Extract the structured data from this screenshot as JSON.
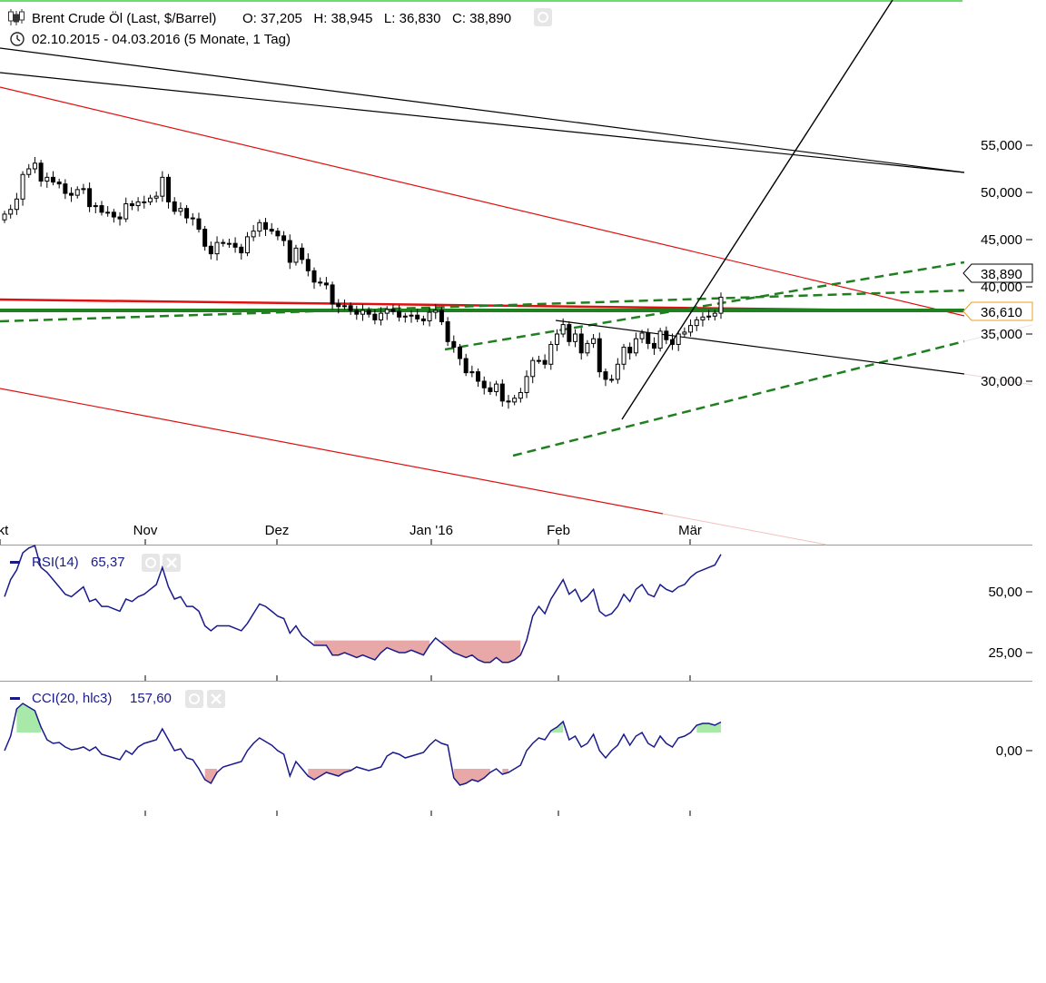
{
  "header": {
    "title": "Brent Crude Öl (Last, $/Barrel)",
    "ohlc": "O: 37,205   H: 38,945   L: 36,830   C: 38,890",
    "range": "02.10.2015 - 04.03.2016 (5 Monate, 1 Tag)"
  },
  "price_labels": {
    "last": "38,890",
    "marker": "36,610"
  },
  "chart_data": [
    {
      "type": "candlestick",
      "title": "Brent Crude Öl (Last, $/Barrel)",
      "ylim": [
        26000,
        58000
      ],
      "y_ticks": [
        "55,000",
        "50,000",
        "45,000",
        "40,000",
        "35,000",
        "30,000"
      ],
      "y_tick_values": [
        55000,
        50000,
        45000,
        40000,
        35000,
        30000
      ],
      "x_ticks": [
        "Okt",
        "Nov",
        "Dez",
        "Jan '16",
        "Feb",
        "Mär"
      ],
      "x_tick_dates": [
        "2015-10-01",
        "2015-11-02",
        "2015-12-01",
        "2016-01-04",
        "2016-02-01",
        "2016-03-01"
      ],
      "x_range": [
        "2015-10-01",
        "2016-04-30"
      ],
      "closes": [
        47.7,
        48.2,
        49.3,
        51.9,
        52.5,
        53.1,
        51.2,
        51.6,
        51.1,
        50.9,
        49.9,
        49.7,
        50.3,
        50.4,
        48.5,
        48.6,
        47.9,
        47.9,
        47.4,
        47.2,
        48.8,
        48.6,
        49.0,
        49.0,
        49.4,
        49.6,
        51.6,
        49.0,
        48.0,
        48.3,
        47.3,
        47.2,
        46.1,
        44.3,
        43.5,
        44.7,
        44.6,
        44.6,
        44.2,
        43.6,
        45.3,
        45.9,
        46.8,
        46.1,
        45.9,
        45.4,
        44.9,
        42.6,
        44.1,
        42.9,
        41.7,
        40.5,
        40.4,
        40.2,
        38.2,
        37.9,
        38.0,
        37.5,
        37.1,
        37.5,
        37.1,
        36.5,
        37.2,
        37.6,
        37.4,
        36.8,
        36.9,
        37.0,
        36.6,
        36.4,
        37.3,
        37.5,
        36.3,
        34.2,
        33.6,
        32.4,
        30.9,
        31.0,
        30.0,
        29.3,
        28.9,
        29.7,
        27.9,
        27.8,
        28.2,
        28.8,
        30.5,
        32.2,
        32.2,
        31.8,
        33.9,
        35.0,
        36.0,
        34.2,
        35.0,
        33.0,
        34.0,
        34.5,
        31.0,
        30.2,
        30.2,
        31.8,
        33.6,
        33.0,
        34.5,
        35.1,
        34.0,
        33.5,
        35.3,
        34.4,
        33.9,
        35.0,
        35.2,
        35.9,
        36.5,
        36.8,
        36.9,
        37.2,
        38.9
      ]
    },
    {
      "type": "line",
      "title": "RSI(14)",
      "last_value": "65,37",
      "ylim": [
        10,
        75
      ],
      "y_ticks": [
        "50,00",
        "25,00"
      ],
      "y_tick_values": [
        50,
        25
      ],
      "threshold": 30,
      "values": [
        48,
        55,
        59,
        66,
        68,
        69,
        60,
        58,
        55,
        52,
        49,
        48,
        50,
        52,
        46,
        47,
        44,
        44,
        43,
        42,
        47,
        46,
        48,
        49,
        51,
        53,
        60,
        52,
        47,
        48,
        44,
        44,
        42,
        36,
        34,
        36,
        36,
        36,
        35,
        34,
        37,
        41,
        45,
        44,
        42,
        40,
        39,
        33,
        36,
        32,
        30,
        28,
        28,
        28,
        24,
        24,
        25,
        24,
        23,
        24,
        23,
        22,
        25,
        27,
        26,
        25,
        25,
        26,
        25,
        24,
        28,
        31,
        29,
        27,
        25,
        24,
        23,
        24,
        22,
        21,
        21,
        23,
        21,
        21,
        22,
        24,
        30,
        40,
        44,
        41,
        47,
        51,
        55,
        49,
        51,
        46,
        48,
        51,
        42,
        40,
        41,
        44,
        49,
        46,
        51,
        53,
        49,
        48,
        53,
        51,
        50,
        52,
        53,
        56,
        58,
        59,
        60,
        61,
        65.37
      ]
    },
    {
      "type": "line",
      "title": "CCI(20, hlc3)",
      "last_value": "157,60",
      "ylim": [
        -380,
        310
      ],
      "y_ticks": [
        "0,00"
      ],
      "y_tick_values": [
        0
      ],
      "thresholds": [
        -100,
        100
      ],
      "values": [
        0,
        80,
        230,
        260,
        240,
        220,
        130,
        60,
        40,
        45,
        20,
        5,
        10,
        20,
        0,
        20,
        -20,
        -30,
        -40,
        -50,
        0,
        -20,
        20,
        40,
        50,
        60,
        120,
        60,
        0,
        10,
        -40,
        -50,
        -100,
        -160,
        -180,
        -120,
        -90,
        -80,
        -70,
        -60,
        0,
        40,
        70,
        50,
        30,
        0,
        -20,
        -140,
        -60,
        -100,
        -140,
        -160,
        -140,
        -120,
        -130,
        -140,
        -120,
        -110,
        -90,
        -100,
        -110,
        -100,
        -90,
        -30,
        -10,
        -20,
        -40,
        -30,
        -20,
        -10,
        30,
        60,
        40,
        30,
        -150,
        -190,
        -180,
        -160,
        -170,
        -150,
        -120,
        -100,
        -130,
        -120,
        -100,
        -80,
        0,
        40,
        70,
        60,
        110,
        130,
        160,
        60,
        80,
        20,
        40,
        90,
        0,
        -40,
        0,
        30,
        90,
        30,
        80,
        100,
        40,
        20,
        80,
        40,
        20,
        70,
        80,
        100,
        140,
        150,
        150,
        140,
        157.6
      ]
    }
  ]
}
